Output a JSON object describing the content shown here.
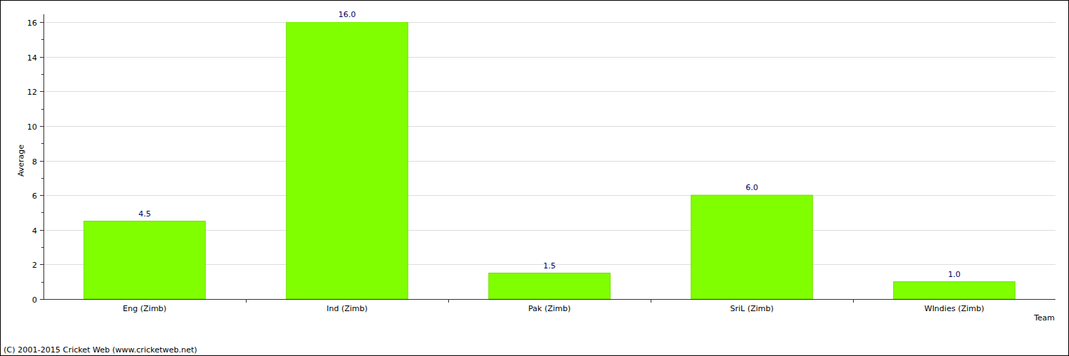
{
  "chart_data": {
    "type": "bar",
    "categories": [
      "Eng (Zimb)",
      "Ind (Zimb)",
      "Pak (Zimb)",
      "SriL (Zimb)",
      "WIndies (Zimb)"
    ],
    "values": [
      4.5,
      16.0,
      1.5,
      6.0,
      1.0
    ],
    "value_labels": [
      "4.5",
      "16.0",
      "1.5",
      "6.0",
      "1.0"
    ],
    "color": "#80ff00",
    "x_label": "Team",
    "y_label": "Average",
    "ylim": [
      0,
      16
    ],
    "yticks": [
      0,
      2,
      4,
      6,
      8,
      10,
      12,
      14,
      16
    ],
    "grid": true,
    "data_labels": true,
    "annotations": [
      "(C) 2001-2015 Cricket Web (www.cricketweb.net)"
    ]
  }
}
